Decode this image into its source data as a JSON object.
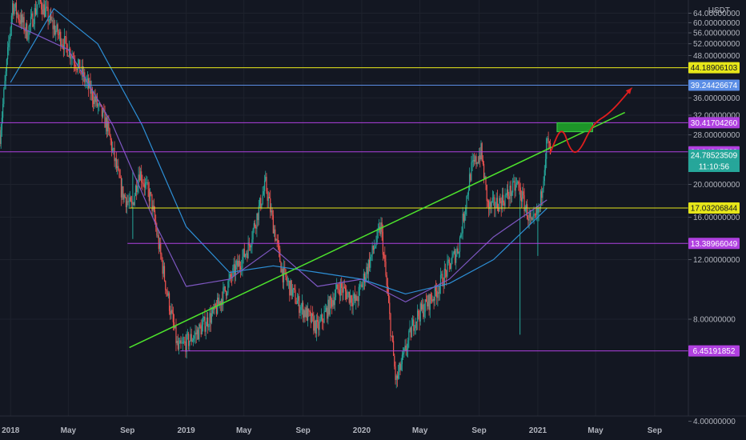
{
  "chart_data": {
    "type": "candlestick",
    "currency": "USDT",
    "y_scale": "log",
    "ylim": [
      3.8,
      70
    ],
    "y_ticks": [
      "4.00000000",
      "8.00000000",
      "12.00000000",
      "16.00000000",
      "20.00000000",
      "24.00000000",
      "28.00000000",
      "32.00000000",
      "36.00000000",
      "40.00000000",
      "44.00000000",
      "48.00000000",
      "52.00000000",
      "56.00000000",
      "60.00000000",
      "64.00000000"
    ],
    "x_ticks": [
      "2018",
      "May",
      "Sep",
      "2019",
      "May",
      "Sep",
      "2020",
      "May",
      "Sep",
      "2021",
      "May",
      "Sep"
    ],
    "x_tick_dates": [
      "2018-01-01",
      "2018-05-01",
      "2018-09-01",
      "2019-01-01",
      "2019-05-01",
      "2019-09-01",
      "2020-01-01",
      "2020-05-01",
      "2020-09-01",
      "2021-01-01",
      "2021-05-01",
      "2021-09-01"
    ],
    "price_path": [
      {
        "date": "2017-12-10",
        "price": 28
      },
      {
        "date": "2018-01-05",
        "price": 68
      },
      {
        "date": "2018-02-05",
        "price": 56
      },
      {
        "date": "2018-03-01",
        "price": 70
      },
      {
        "date": "2018-04-01",
        "price": 58
      },
      {
        "date": "2018-05-10",
        "price": 48
      },
      {
        "date": "2018-06-15",
        "price": 38
      },
      {
        "date": "2018-07-20",
        "price": 30
      },
      {
        "date": "2018-08-20",
        "price": 19
      },
      {
        "date": "2018-09-10",
        "price": 17
      },
      {
        "date": "2018-09-25",
        "price": 22
      },
      {
        "date": "2018-10-20",
        "price": 18
      },
      {
        "date": "2018-11-20",
        "price": 10
      },
      {
        "date": "2018-12-15",
        "price": 6.5
      },
      {
        "date": "2019-01-20",
        "price": 7.2
      },
      {
        "date": "2019-03-01",
        "price": 8.4
      },
      {
        "date": "2019-04-10",
        "price": 11
      },
      {
        "date": "2019-05-10",
        "price": 13
      },
      {
        "date": "2019-06-15",
        "price": 20
      },
      {
        "date": "2019-07-20",
        "price": 11
      },
      {
        "date": "2019-08-20",
        "price": 9
      },
      {
        "date": "2019-10-01",
        "price": 7.5
      },
      {
        "date": "2019-11-15",
        "price": 10
      },
      {
        "date": "2019-12-20",
        "price": 9
      },
      {
        "date": "2020-02-10",
        "price": 15
      },
      {
        "date": "2020-03-12",
        "price": 5.2
      },
      {
        "date": "2020-04-20",
        "price": 8
      },
      {
        "date": "2020-06-01",
        "price": 9.5
      },
      {
        "date": "2020-07-20",
        "price": 13
      },
      {
        "date": "2020-08-15",
        "price": 22
      },
      {
        "date": "2020-09-05",
        "price": 25
      },
      {
        "date": "2020-09-20",
        "price": 17
      },
      {
        "date": "2020-10-20",
        "price": 18
      },
      {
        "date": "2020-11-20",
        "price": 20
      },
      {
        "date": "2020-12-20",
        "price": 15
      },
      {
        "date": "2021-01-05",
        "price": 17
      },
      {
        "date": "2021-01-20",
        "price": 27
      },
      {
        "date": "2021-01-27",
        "price": 24.8
      }
    ],
    "horizontal_levels": [
      {
        "price": 44.18906103,
        "label": "44.18906103",
        "color": "#e6e619",
        "badge_text_color": "#131722"
      },
      {
        "price": 39.24426674,
        "label": "39.24426674",
        "color": "#5b8ee6",
        "badge_text_color": "#ffffff"
      },
      {
        "price": 30.4170426,
        "label": "30.41704260",
        "color": "#b040e0",
        "badge_text_color": "#ffffff"
      },
      {
        "price": 24.94947738,
        "label": "24.94947738",
        "color": "#b040e0",
        "badge_text_color": "#ffffff"
      },
      {
        "price": 17.03206844,
        "label": "17.03206844",
        "color": "#e6e619",
        "badge_text_color": "#131722"
      },
      {
        "price": 13.38966049,
        "label": "13.38966049",
        "color": "#b040e0",
        "badge_text_color": "#ffffff"
      },
      {
        "price": 6.45191852,
        "label": "6.45191852",
        "color": "#b040e0",
        "badge_text_color": "#ffffff"
      }
    ],
    "last_price": {
      "price": 24.78523509,
      "label": "24.78523509",
      "countdown": "11:10:56",
      "color": "#26a69a"
    },
    "trendline": {
      "from": {
        "date": "2018-09-05",
        "price": 6.6
      },
      "to": {
        "date": "2021-07-01",
        "price": 32.6
      },
      "color": "#4de32c"
    },
    "target_zone": {
      "from_date": "2021-02-10",
      "to_date": "2021-04-25",
      "top": 30.4,
      "bottom": 28.6,
      "color": "#1e9c2a"
    },
    "projection": {
      "color": "#e01e1e",
      "points": [
        {
          "date": "2021-01-27",
          "price": 24.8
        },
        {
          "date": "2021-02-20",
          "price": 30.0
        },
        {
          "date": "2021-03-10",
          "price": 25.0
        },
        {
          "date": "2021-03-28",
          "price": 24.8
        },
        {
          "date": "2021-04-25",
          "price": 30.2
        },
        {
          "date": "2021-06-01",
          "price": 32.5
        },
        {
          "date": "2021-07-15",
          "price": 38.5
        }
      ]
    },
    "moving_averages": [
      {
        "color": "#2d8fd6",
        "points": [
          {
            "date": "2018-01-01",
            "price": 40
          },
          {
            "date": "2018-04-01",
            "price": 66
          },
          {
            "date": "2018-07-01",
            "price": 52
          },
          {
            "date": "2018-10-01",
            "price": 30
          },
          {
            "date": "2019-01-01",
            "price": 15
          },
          {
            "date": "2019-04-01",
            "price": 11
          },
          {
            "date": "2019-07-01",
            "price": 11.5
          },
          {
            "date": "2019-10-01",
            "price": 11
          },
          {
            "date": "2020-01-01",
            "price": 10.5
          },
          {
            "date": "2020-04-01",
            "price": 9.5
          },
          {
            "date": "2020-07-01",
            "price": 10.2
          },
          {
            "date": "2020-10-01",
            "price": 12
          },
          {
            "date": "2021-01-20",
            "price": 17
          }
        ]
      },
      {
        "color": "#7e57c2",
        "points": [
          {
            "date": "2018-01-01",
            "price": 60
          },
          {
            "date": "2018-05-01",
            "price": 50
          },
          {
            "date": "2018-08-01",
            "price": 30
          },
          {
            "date": "2018-11-01",
            "price": 15
          },
          {
            "date": "2019-01-01",
            "price": 10
          },
          {
            "date": "2019-04-01",
            "price": 10.5
          },
          {
            "date": "2019-07-01",
            "price": 13
          },
          {
            "date": "2019-10-01",
            "price": 10
          },
          {
            "date": "2020-01-01",
            "price": 10.5
          },
          {
            "date": "2020-04-01",
            "price": 9
          },
          {
            "date": "2020-07-01",
            "price": 10.5
          },
          {
            "date": "2020-10-01",
            "price": 14
          },
          {
            "date": "2021-01-20",
            "price": 18
          }
        ]
      }
    ]
  },
  "colors": {
    "background": "#131722",
    "axis_text": "#b2b5be",
    "candle_up": "#26a69a",
    "candle_down": "#ef5350"
  }
}
